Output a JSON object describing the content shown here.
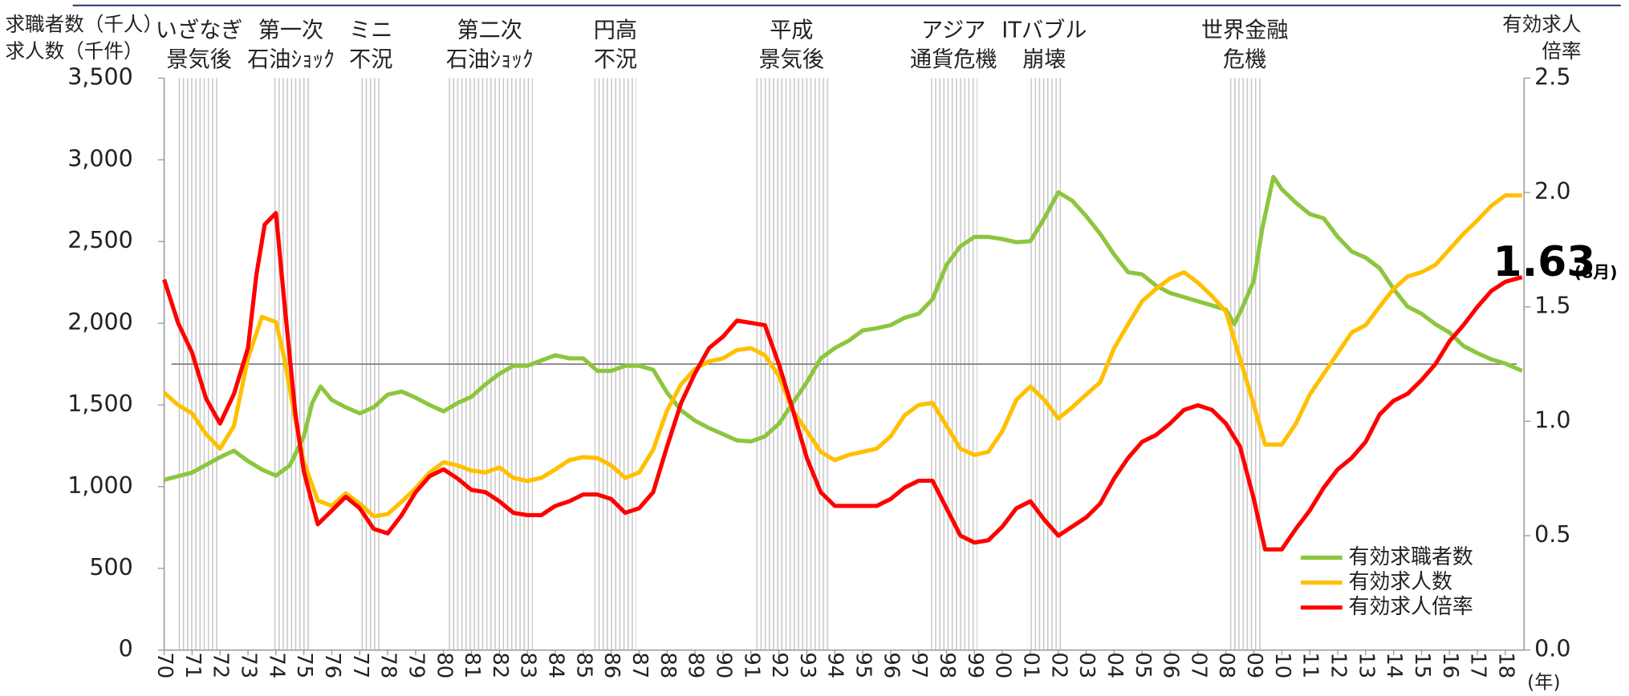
{
  "chart_data": {
    "type": "line",
    "y_title": [
      "求職者数（千人）",
      "求人数（千件）"
    ],
    "y2_title": [
      "有効求人",
      "倍率"
    ],
    "x_unit": "(年)",
    "xlim": [
      1970,
      2018.67
    ],
    "xticks": [
      {
        "value": 1970,
        "label": "70"
      },
      {
        "value": 1971,
        "label": "71"
      },
      {
        "value": 1972,
        "label": "72"
      },
      {
        "value": 1973,
        "label": "73"
      },
      {
        "value": 1974,
        "label": "74"
      },
      {
        "value": 1975,
        "label": "75"
      },
      {
        "value": 1976,
        "label": "76"
      },
      {
        "value": 1977,
        "label": "77"
      },
      {
        "value": 1978,
        "label": "78"
      },
      {
        "value": 1979,
        "label": "79"
      },
      {
        "value": 1980,
        "label": "80"
      },
      {
        "value": 1981,
        "label": "81"
      },
      {
        "value": 1982,
        "label": "82"
      },
      {
        "value": 1983,
        "label": "83"
      },
      {
        "value": 1984,
        "label": "84"
      },
      {
        "value": 1985,
        "label": "85"
      },
      {
        "value": 1986,
        "label": "86"
      },
      {
        "value": 1987,
        "label": "87"
      },
      {
        "value": 1988,
        "label": "88"
      },
      {
        "value": 1989,
        "label": "89"
      },
      {
        "value": 1990,
        "label": "90"
      },
      {
        "value": 1991,
        "label": "91"
      },
      {
        "value": 1992,
        "label": "92"
      },
      {
        "value": 1993,
        "label": "93"
      },
      {
        "value": 1994,
        "label": "94"
      },
      {
        "value": 1995,
        "label": "95"
      },
      {
        "value": 1996,
        "label": "96"
      },
      {
        "value": 1997,
        "label": "97"
      },
      {
        "value": 1998,
        "label": "98"
      },
      {
        "value": 1999,
        "label": "99"
      },
      {
        "value": 2000,
        "label": "00"
      },
      {
        "value": 2001,
        "label": "01"
      },
      {
        "value": 2002,
        "label": "02"
      },
      {
        "value": 2003,
        "label": "03"
      },
      {
        "value": 2004,
        "label": "04"
      },
      {
        "value": 2005,
        "label": "05"
      },
      {
        "value": 2006,
        "label": "06"
      },
      {
        "value": 2007,
        "label": "07"
      },
      {
        "value": 2008,
        "label": "08"
      },
      {
        "value": 2009,
        "label": "09"
      },
      {
        "value": 2010,
        "label": "10"
      },
      {
        "value": 2011,
        "label": "11"
      },
      {
        "value": 2012,
        "label": "12"
      },
      {
        "value": 2013,
        "label": "13"
      },
      {
        "value": 2014,
        "label": "14"
      },
      {
        "value": 2015,
        "label": "15"
      },
      {
        "value": 2016,
        "label": "16"
      },
      {
        "value": 2017,
        "label": "17"
      },
      {
        "value": 2018,
        "label": "18"
      }
    ],
    "ylim": [
      0,
      3500
    ],
    "yticks": [
      0,
      500,
      {
        "value": 1000,
        "label": "1,000"
      },
      {
        "value": 1500,
        "label": "1,500"
      },
      {
        "value": 2000,
        "label": "2,000"
      },
      {
        "value": 2500,
        "label": "2,500"
      },
      {
        "value": 3000,
        "label": "3,000"
      },
      {
        "value": 3500,
        "label": "3,500"
      }
    ],
    "y2lim": [
      0,
      2.5
    ],
    "y2ticks": [
      {
        "value": 0,
        "label": "0.0"
      },
      0.5,
      {
        "value": 1,
        "label": "1.0"
      },
      1.5,
      {
        "value": 2,
        "label": "2.0"
      },
      2.5
    ],
    "hline": 1750,
    "legend": "lower right",
    "shading": [
      {
        "start": 1970.5,
        "end": 1972.0,
        "label": [
          "いざなぎ",
          "景気後"
        ]
      },
      {
        "start": 1973.87,
        "end": 1975.2,
        "label": [
          "第一次",
          "石油ｼｮｯｸ"
        ]
      },
      {
        "start": 1977.0,
        "end": 1977.8,
        "label": [
          "ミニ",
          "不況"
        ]
      },
      {
        "start": 1980.1,
        "end": 1983.2,
        "label": [
          "第二次",
          "石油ｼｮｯｸ"
        ]
      },
      {
        "start": 1985.4,
        "end": 1986.9,
        "label": [
          "円高",
          "不況"
        ]
      },
      {
        "start": 1991.1,
        "end": 1993.8,
        "label": [
          "平成",
          "景気後"
        ]
      },
      {
        "start": 1997.4,
        "end": 1999.1,
        "label": [
          "アジア",
          "通貨危機"
        ]
      },
      {
        "start": 2000.9,
        "end": 2002.1,
        "label": [
          "ITバブル",
          "崩壊"
        ]
      },
      {
        "start": 2008.1,
        "end": 2009.25,
        "label": [
          "世界金融",
          "危機"
        ]
      }
    ],
    "annotation": {
      "text": "1.63",
      "note": "(8月)"
    },
    "series": [
      {
        "name": "有効求職者数",
        "color": "#8cc63f",
        "axis": "y",
        "x": [
          1970,
          1971,
          1972,
          1972.5,
          1973,
          1973.5,
          1974,
          1974.5,
          1975,
          1975.3,
          1975.6,
          1976,
          1976.5,
          1977,
          1977.5,
          1978,
          1978.5,
          1979,
          1979.5,
          1980,
          1980.5,
          1981,
          1981.5,
          1982,
          1982.5,
          1983,
          1983.5,
          1984,
          1984.5,
          1985,
          1985.5,
          1986,
          1986.5,
          1987,
          1987.5,
          1988,
          1988.5,
          1989,
          1989.5,
          1990,
          1990.5,
          1991,
          1991.5,
          1992,
          1992.5,
          1993,
          1993.5,
          1994,
          1994.5,
          1995,
          1995.5,
          1996,
          1996.5,
          1997,
          1997.5,
          1998,
          1998.5,
          1999,
          1999.5,
          2000,
          2000.5,
          2001,
          2001.5,
          2002,
          2002.5,
          2003,
          2003.5,
          2004,
          2004.5,
          2005,
          2005.5,
          2006,
          2006.5,
          2007,
          2007.5,
          2008,
          2008.3,
          2008.6,
          2009,
          2009.3,
          2009.7,
          2010,
          2010.5,
          2011,
          2011.5,
          2012,
          2012.5,
          2013,
          2013.5,
          2014,
          2014.5,
          2015,
          2015.5,
          2016,
          2016.5,
          2017,
          2017.5,
          2018,
          2018.6
        ],
        "values": [
          1042,
          1086,
          1180,
          1220,
          1156,
          1105,
          1067,
          1130,
          1308,
          1512,
          1613,
          1530,
          1486,
          1448,
          1486,
          1563,
          1582,
          1544,
          1500,
          1461,
          1512,
          1550,
          1626,
          1690,
          1740,
          1740,
          1772,
          1804,
          1785,
          1785,
          1709,
          1709,
          1740,
          1740,
          1715,
          1575,
          1467,
          1404,
          1359,
          1321,
          1283,
          1277,
          1308,
          1385,
          1512,
          1639,
          1785,
          1848,
          1893,
          1956,
          1969,
          1988,
          2033,
          2058,
          2147,
          2357,
          2471,
          2528,
          2528,
          2515,
          2496,
          2502,
          2642,
          2801,
          2750,
          2655,
          2547,
          2420,
          2312,
          2299,
          2230,
          2185,
          2160,
          2134,
          2109,
          2083,
          1994,
          2102,
          2261,
          2579,
          2896,
          2820,
          2738,
          2668,
          2642,
          2528,
          2439,
          2401,
          2337,
          2210,
          2102,
          2058,
          1994,
          1944,
          1861,
          1817,
          1779,
          1753,
          1709
        ]
      },
      {
        "name": "有効求人数",
        "color": "#ffc000",
        "axis": "y",
        "x": [
          1970,
          1970.5,
          1971,
          1971.5,
          1972,
          1972.5,
          1973,
          1973.5,
          1974,
          1974.3,
          1974.7,
          1975,
          1975.5,
          1976,
          1976.5,
          1977,
          1977.5,
          1978,
          1978.5,
          1979,
          1979.5,
          1980,
          1980.5,
          1981,
          1981.5,
          1982,
          1982.5,
          1983,
          1983.5,
          1984,
          1984.5,
          1985,
          1985.5,
          1986,
          1986.5,
          1987,
          1987.5,
          1988,
          1988.5,
          1989,
          1989.5,
          1990,
          1990.5,
          1991,
          1991.5,
          1992,
          1992.5,
          1993,
          1993.5,
          1994,
          1994.5,
          1995,
          1995.5,
          1996,
          1996.5,
          1997,
          1997.5,
          1998,
          1998.5,
          1999,
          1999.5,
          2000,
          2000.5,
          2001,
          2001.5,
          2002,
          2002.5,
          2003,
          2003.5,
          2004,
          2004.5,
          2005,
          2005.5,
          2006,
          2006.5,
          2007,
          2007.5,
          2008,
          2008.5,
          2009,
          2009.4,
          2010,
          2010.5,
          2011,
          2011.5,
          2012,
          2012.5,
          2013,
          2013.5,
          2014,
          2014.5,
          2015,
          2015.5,
          2016,
          2016.5,
          2017,
          2017.5,
          2018,
          2018.6
        ],
        "values": [
          1575,
          1500,
          1448,
          1321,
          1232,
          1372,
          1785,
          2039,
          2007,
          1785,
          1404,
          1150,
          915,
          883,
          959,
          896,
          819,
          832,
          908,
          991,
          1086,
          1150,
          1130,
          1099,
          1086,
          1118,
          1054,
          1035,
          1054,
          1105,
          1162,
          1181,
          1175,
          1130,
          1054,
          1086,
          1226,
          1467,
          1626,
          1721,
          1766,
          1785,
          1836,
          1848,
          1804,
          1677,
          1467,
          1340,
          1213,
          1162,
          1194,
          1213,
          1232,
          1308,
          1436,
          1500,
          1512,
          1372,
          1232,
          1194,
          1213,
          1340,
          1531,
          1613,
          1531,
          1417,
          1486,
          1563,
          1639,
          1848,
          1994,
          2134,
          2210,
          2274,
          2312,
          2248,
          2166,
          2071,
          1785,
          1500,
          1258,
          1258,
          1385,
          1563,
          1690,
          1817,
          1944,
          1988,
          2102,
          2210,
          2286,
          2312,
          2357,
          2452,
          2547,
          2630,
          2719,
          2782,
          2782
        ]
      },
      {
        "name": "有効求人倍率",
        "color": "#ff0000",
        "axis": "y2",
        "x": [
          1970,
          1970.5,
          1971,
          1971.5,
          1972,
          1972.5,
          1973,
          1973.3,
          1973.6,
          1974,
          1974.3,
          1974.7,
          1975,
          1975.5,
          1976,
          1976.5,
          1977,
          1977.5,
          1978,
          1978.5,
          1979,
          1979.5,
          1980,
          1980.5,
          1981,
          1981.5,
          1982,
          1982.5,
          1983,
          1983.5,
          1984,
          1984.5,
          1985,
          1985.5,
          1986,
          1986.5,
          1987,
          1987.5,
          1988,
          1988.5,
          1989,
          1989.5,
          1990,
          1990.5,
          1991,
          1991.5,
          1992,
          1992.5,
          1993,
          1993.5,
          1994,
          1994.5,
          1995,
          1995.5,
          1996,
          1996.5,
          1997,
          1997.5,
          1998,
          1998.5,
          1999,
          1999.5,
          2000,
          2000.5,
          2001,
          2001.5,
          2002,
          2002.5,
          2003,
          2003.5,
          2004,
          2004.5,
          2005,
          2005.5,
          2006,
          2006.5,
          2007,
          2007.5,
          2008,
          2008.5,
          2009,
          2009.4,
          2010,
          2010.5,
          2011,
          2011.5,
          2012,
          2012.5,
          2013,
          2013.5,
          2014,
          2014.5,
          2015,
          2015.5,
          2016,
          2016.5,
          2017,
          2017.5,
          2018,
          2018.6
        ],
        "values": [
          1.62,
          1.43,
          1.3,
          1.1,
          0.99,
          1.12,
          1.32,
          1.64,
          1.86,
          1.91,
          1.52,
          1.03,
          0.78,
          0.55,
          0.61,
          0.67,
          0.62,
          0.53,
          0.51,
          0.59,
          0.69,
          0.76,
          0.79,
          0.75,
          0.7,
          0.69,
          0.65,
          0.6,
          0.59,
          0.59,
          0.63,
          0.65,
          0.68,
          0.68,
          0.66,
          0.6,
          0.62,
          0.69,
          0.89,
          1.08,
          1.21,
          1.32,
          1.37,
          1.44,
          1.43,
          1.42,
          1.25,
          1.05,
          0.84,
          0.69,
          0.63,
          0.63,
          0.63,
          0.63,
          0.66,
          0.71,
          0.74,
          0.74,
          0.62,
          0.5,
          0.47,
          0.48,
          0.54,
          0.62,
          0.65,
          0.57,
          0.5,
          0.54,
          0.58,
          0.64,
          0.75,
          0.84,
          0.91,
          0.94,
          0.99,
          1.05,
          1.07,
          1.05,
          0.99,
          0.89,
          0.66,
          0.44,
          0.44,
          0.53,
          0.61,
          0.71,
          0.79,
          0.84,
          0.91,
          1.03,
          1.09,
          1.12,
          1.18,
          1.25,
          1.35,
          1.42,
          1.5,
          1.57,
          1.61,
          1.63
        ]
      }
    ]
  }
}
